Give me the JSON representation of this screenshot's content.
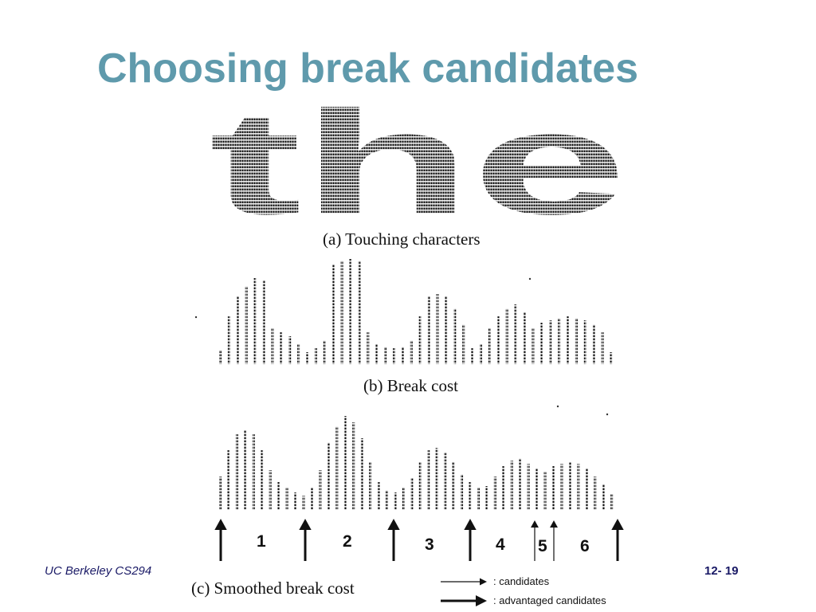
{
  "slide": {
    "title": "Choosing break candidates",
    "footer_left": "UC Berkeley CS294",
    "footer_right": "12- 19"
  },
  "figure": {
    "caption_a": "(a)   Touching characters",
    "caption_b": "(b)   Break cost",
    "caption_c": "(c)   Smoothed break cost",
    "touching_text": "the",
    "segments": [
      "1",
      "2",
      "3",
      "4",
      "5",
      "6"
    ],
    "legend": {
      "candidates": ": candidates",
      "advantaged": ": advantaged candidates"
    }
  }
}
